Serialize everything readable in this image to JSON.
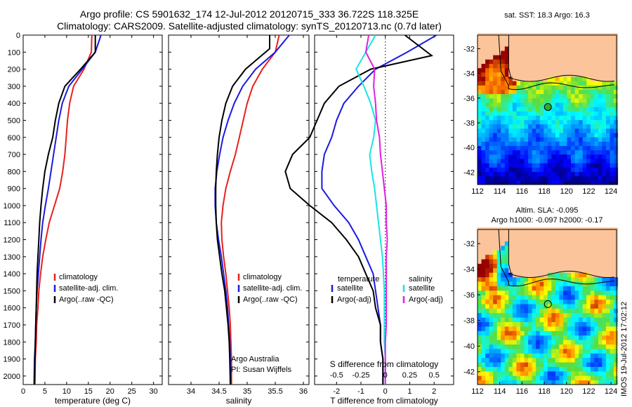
{
  "title": {
    "line1": "Argo profile: CS 5901632_174 12-Jul-2012 20120715_333 36.722S 118.325E",
    "line2": "Climatology: CARS2009. Satellite-adjusted climatology: synTS_20120713.nc (0.7d later)"
  },
  "colors": {
    "climatology": "#e8201c",
    "satellite": "#1a1ae0",
    "argo": "#000000",
    "sat_salinity": "#19e4e4",
    "argo_salinity": "#e020e0",
    "land": "#fbc49a"
  },
  "chart_data": [
    {
      "type": "line",
      "panel": "temperature",
      "xlabel": "temperature (deg C)",
      "xlim": [
        0,
        32
      ],
      "xticks": [
        "0",
        "5",
        "10",
        "15",
        "20",
        "25",
        "30"
      ],
      "ylim": [
        0,
        2050
      ],
      "yreverse": true,
      "yticks": [
        "0",
        "100",
        "200",
        "300",
        "400",
        "500",
        "600",
        "700",
        "800",
        "900",
        "1000",
        "1100",
        "1200",
        "1300",
        "1400",
        "1500",
        "1600",
        "1700",
        "1800",
        "1900",
        "2000"
      ],
      "legend": "lower-left",
      "series": [
        {
          "name": "climatology",
          "color": "#e8201c",
          "x": [
            15.8,
            15.7,
            14,
            11.6,
            10.7,
            10.2,
            9.9,
            9.6,
            9.1,
            8.4,
            7.2,
            6,
            5.2,
            4.5,
            4,
            3.6,
            3.4,
            3.1,
            3,
            2.8,
            2.7
          ],
          "y": [
            0,
            100,
            200,
            300,
            400,
            500,
            600,
            700,
            800,
            900,
            1000,
            1100,
            1200,
            1300,
            1400,
            1500,
            1600,
            1700,
            1800,
            1900,
            2050
          ]
        },
        {
          "name": "satellite-adj. clim.",
          "color": "#1a1ae0",
          "x": [
            17.9,
            16.6,
            13.6,
            10.5,
            9,
            8.2,
            7.6,
            7,
            6.4,
            5.8,
            5.1,
            4.5,
            4.1,
            3.8,
            3.5,
            3.2,
            3,
            2.9,
            2.8,
            2.6,
            2.5
          ],
          "y": [
            0,
            100,
            200,
            300,
            400,
            500,
            600,
            700,
            800,
            900,
            1000,
            1100,
            1200,
            1300,
            1400,
            1500,
            1600,
            1700,
            1800,
            1900,
            2050
          ]
        },
        {
          "name": "Argo(..raw -QC)",
          "color": "#000000",
          "x": [
            16.6,
            16.6,
            13.2,
            9.6,
            8.2,
            7.4,
            6.8,
            5.8,
            5,
            4.5,
            4.1,
            3.8,
            3.6,
            3.4,
            3.2,
            3.1,
            3,
            2.9,
            2.8,
            2.7,
            2.6
          ],
          "y": [
            0,
            100,
            200,
            300,
            400,
            500,
            600,
            700,
            800,
            900,
            1000,
            1100,
            1200,
            1300,
            1400,
            1500,
            1600,
            1700,
            1800,
            1900,
            2050
          ]
        }
      ]
    },
    {
      "type": "line",
      "panel": "salinity",
      "xlabel": "salinity",
      "xlim": [
        33.6,
        36.1
      ],
      "xticks": [
        "34",
        "34.5",
        "35",
        "35.5",
        "36"
      ],
      "ylim": [
        0,
        2050
      ],
      "yreverse": true,
      "legend": "lower-right",
      "annotations": [
        "Argo Australia",
        "PI: Susan Wijffels"
      ],
      "series": [
        {
          "name": "climatology",
          "color": "#e8201c",
          "x": [
            35.57,
            35.5,
            35.27,
            35.1,
            35,
            34.93,
            34.86,
            34.79,
            34.7,
            34.62,
            34.57,
            34.54,
            34.55,
            34.58,
            34.62,
            34.65,
            34.68,
            34.7,
            34.71,
            34.72,
            34.72
          ],
          "y": [
            0,
            100,
            200,
            300,
            400,
            500,
            600,
            700,
            800,
            900,
            1000,
            1100,
            1200,
            1300,
            1400,
            1500,
            1600,
            1700,
            1800,
            1900,
            2050
          ]
        },
        {
          "name": "satellite-adj. clim.",
          "color": "#1a1ae0",
          "x": [
            35.75,
            35.5,
            35.15,
            34.92,
            34.77,
            34.66,
            34.57,
            34.51,
            34.46,
            34.43,
            34.43,
            34.45,
            34.49,
            34.54,
            34.58,
            34.62,
            34.65,
            34.67,
            34.69,
            34.7,
            34.71
          ],
          "y": [
            0,
            100,
            200,
            300,
            400,
            500,
            600,
            700,
            800,
            900,
            1000,
            1100,
            1200,
            1300,
            1400,
            1500,
            1600,
            1700,
            1800,
            1900,
            2050
          ]
        },
        {
          "name": "Argo(..raw -QC)",
          "color": "#000000",
          "x": [
            35.4,
            35.4,
            34.97,
            34.74,
            34.62,
            34.55,
            34.5,
            34.47,
            34.45,
            34.44,
            34.44,
            34.45,
            34.47,
            34.51,
            34.55,
            34.6,
            34.63,
            34.66,
            34.68,
            34.69,
            34.7
          ],
          "y": [
            0,
            80,
            200,
            300,
            400,
            500,
            600,
            700,
            800,
            900,
            1000,
            1100,
            1200,
            1300,
            1400,
            1500,
            1600,
            1700,
            1800,
            1900,
            2050
          ]
        }
      ]
    },
    {
      "type": "line",
      "panel": "difference",
      "xlabel": "T difference from climatology",
      "xlabel_top": "S difference from climatology",
      "xlim": [
        -2.9,
        2.8
      ],
      "xticks": [
        "-2",
        "-1",
        "0",
        "1",
        "2"
      ],
      "xticks_top": [
        "-0.5",
        "-0.25",
        "0",
        "0.25",
        "0.5"
      ],
      "ylim": [
        0,
        2050
      ],
      "yreverse": true,
      "zero_line": "dotted",
      "legend_groups": [
        "temperature",
        "salinity"
      ],
      "series": [
        {
          "name": "satellite",
          "group": "temperature",
          "color": "#1a1ae0",
          "x": [
            2.1,
            0.9,
            -0.4,
            -1.1,
            -1.7,
            -2,
            -2.2,
            -2.5,
            -2.6,
            -2.6,
            -2.1,
            -1.5,
            -1.1,
            -0.8,
            -0.5,
            -0.4,
            -0.3,
            -0.2,
            -0.2,
            -0.1,
            -0.1
          ],
          "y": [
            0,
            100,
            200,
            300,
            400,
            500,
            600,
            700,
            800,
            900,
            1000,
            1100,
            1200,
            1300,
            1400,
            1500,
            1600,
            1700,
            1800,
            1900,
            2050
          ]
        },
        {
          "name": "Argo(-adj)",
          "group": "temperature",
          "color": "#000000",
          "x": [
            0.8,
            1.9,
            -0.6,
            -1.9,
            -2.5,
            -2.8,
            -3.1,
            -3.8,
            -4.1,
            -3.9,
            -3.1,
            -2.2,
            -1.6,
            -1.1,
            -0.8,
            -0.5,
            -0.4,
            -0.2,
            -0.2,
            -0.1,
            -0.1
          ],
          "y": [
            0,
            120,
            200,
            300,
            400,
            500,
            600,
            700,
            800,
            900,
            1000,
            1100,
            1200,
            1300,
            1400,
            1500,
            1600,
            1700,
            1800,
            1900,
            2050
          ]
        },
        {
          "name": "satellite",
          "group": "salinity",
          "color": "#19e4e4",
          "x": [
            -0.1,
            -0.2,
            -0.3,
            -0.22,
            -0.15,
            -0.1,
            -0.12,
            -0.16,
            -0.14,
            -0.11,
            -0.09,
            -0.07,
            -0.05,
            -0.03,
            -0.02,
            -0.01,
            -0.01,
            -0.01,
            -0.01,
            0,
            0
          ],
          "y": [
            0,
            100,
            200,
            300,
            400,
            500,
            600,
            700,
            800,
            900,
            1000,
            1100,
            1200,
            1300,
            1400,
            1500,
            1600,
            1700,
            1800,
            1900,
            2050
          ]
        },
        {
          "name": "Argo(-adj)",
          "group": "salinity",
          "color": "#e020e0",
          "x": [
            -0.17,
            -0.2,
            -0.11,
            -0.12,
            -0.1,
            -0.09,
            -0.06,
            -0.05,
            -0.03,
            -0.01,
            0.01,
            0.01,
            0.02,
            0.01,
            0.01,
            0.01,
            0.01,
            0.01,
            0,
            0,
            0
          ],
          "y": [
            0,
            100,
            200,
            300,
            400,
            500,
            600,
            700,
            800,
            900,
            1000,
            1100,
            1200,
            1300,
            1400,
            1500,
            1600,
            1700,
            1800,
            1900,
            2050
          ]
        }
      ]
    },
    {
      "type": "heatmap",
      "panel": "sst_map",
      "title": "sat. SST: 18.3 Argo: 16.3",
      "xlim": [
        112,
        124.5
      ],
      "ylim": [
        -43,
        -30.9
      ],
      "xticks": [
        "112",
        "114",
        "116",
        "118",
        "120",
        "122",
        "124"
      ],
      "yticks": [
        "-32",
        "-34",
        "-36",
        "-38",
        "-40",
        "-42"
      ],
      "marker": {
        "lon": 118.325,
        "lat": -36.722,
        "fill": "#33aa33"
      }
    },
    {
      "type": "heatmap",
      "panel": "sla_map",
      "title": "Altim. SLA: -0.095",
      "subtitle": "Argo h1000: -0.097 h2000: -0.17",
      "xlim": [
        112,
        124.5
      ],
      "ylim": [
        -43,
        -30.9
      ],
      "xticks": [
        "112",
        "114",
        "116",
        "118",
        "120",
        "122",
        "124"
      ],
      "yticks": [
        "-32",
        "-34",
        "-36",
        "-38",
        "-40",
        "-42"
      ],
      "marker": {
        "lon": 118.325,
        "lat": -36.722,
        "fill": "none"
      }
    }
  ],
  "side_stamp": "IMOS 19-Jul-2012 17:02:12"
}
